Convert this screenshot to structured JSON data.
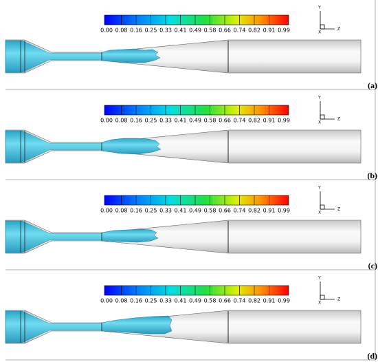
{
  "panels": [
    {
      "label": "(a)",
      "colorbar_ticks": [
        "0.00",
        "0.08",
        "0.16",
        "0.25",
        "0.33",
        "0.41",
        "0.49",
        "0.58",
        "0.66",
        "0.74",
        "0.82",
        "0.91",
        "0.99"
      ],
      "axes": {
        "y": "Y",
        "x": "X",
        "z": "Z"
      }
    },
    {
      "label": "(b)",
      "colorbar_ticks": [
        "0.00",
        "0.08",
        "0.16",
        "0.25",
        "0.33",
        "0.41",
        "0.49",
        "0.58",
        "0.66",
        "0.74",
        "0.82",
        "0.91",
        "0.99"
      ],
      "axes": {
        "y": "Y",
        "x": "X",
        "z": "Z"
      }
    },
    {
      "label": "(c)",
      "colorbar_ticks": [
        "0.00",
        "0.08",
        "0.16",
        "0.25",
        "0.33",
        "0.41",
        "0.49",
        "0.58",
        "0.66",
        "0.74",
        "0.82",
        "0.91",
        "0.99"
      ],
      "axes": {
        "y": "Y",
        "x": "X",
        "z": "Z"
      }
    },
    {
      "label": "(d)",
      "colorbar_ticks": [
        "0.00",
        "0.08",
        "0.16",
        "0.25",
        "0.33",
        "0.41",
        "0.49",
        "0.58",
        "0.66",
        "0.74",
        "0.82",
        "0.91",
        "0.99"
      ],
      "axes": {
        "y": "Y",
        "x": "X",
        "z": "Z"
      }
    }
  ]
}
